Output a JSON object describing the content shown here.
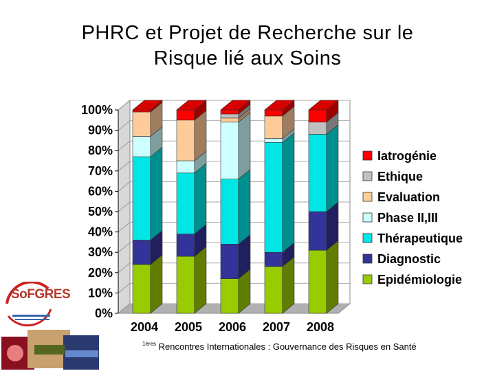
{
  "slide": {
    "title_line1": "PHRC et Projet de Recherche sur le",
    "title_line2": "Risque lié aux Soins",
    "footer_sup": "1ères",
    "footer_text": " Rencontres Internationales : Gouvernance des Risques en Santé",
    "logo_text": "SoFGRES"
  },
  "chart_data": {
    "type": "bar",
    "stacked": true,
    "percent": true,
    "three_d": true,
    "categories": [
      "2004",
      "2005",
      "2006",
      "2007",
      "2008"
    ],
    "ylim": [
      0,
      100
    ],
    "yticks": [
      "0%",
      "10%",
      "20%",
      "30%",
      "40%",
      "50%",
      "60%",
      "70%",
      "80%",
      "90%",
      "100%"
    ],
    "legend_position": "right",
    "series": [
      {
        "name": "Epidémiologie",
        "color": "#99cc00",
        "values": [
          24,
          28,
          17,
          23,
          31
        ]
      },
      {
        "name": "Diagnostic",
        "color": "#333399",
        "values": [
          12,
          11,
          17,
          7,
          19
        ]
      },
      {
        "name": "Thérapeutique",
        "color": "#00e6e6",
        "values": [
          41,
          30,
          32,
          54,
          38
        ]
      },
      {
        "name": "Phase II,III",
        "color": "#ccffff",
        "values": [
          10,
          6,
          28,
          2,
          0
        ]
      },
      {
        "name": "Evaluation",
        "color": "#ffcc99",
        "values": [
          12,
          20,
          2,
          11,
          0
        ]
      },
      {
        "name": "Ethique",
        "color": "#c0c0c0",
        "values": [
          0,
          0,
          2,
          0,
          6
        ]
      },
      {
        "name": "Iatrogénie",
        "color": "#ff0000",
        "values": [
          1,
          5,
          2,
          3,
          6
        ]
      }
    ]
  }
}
